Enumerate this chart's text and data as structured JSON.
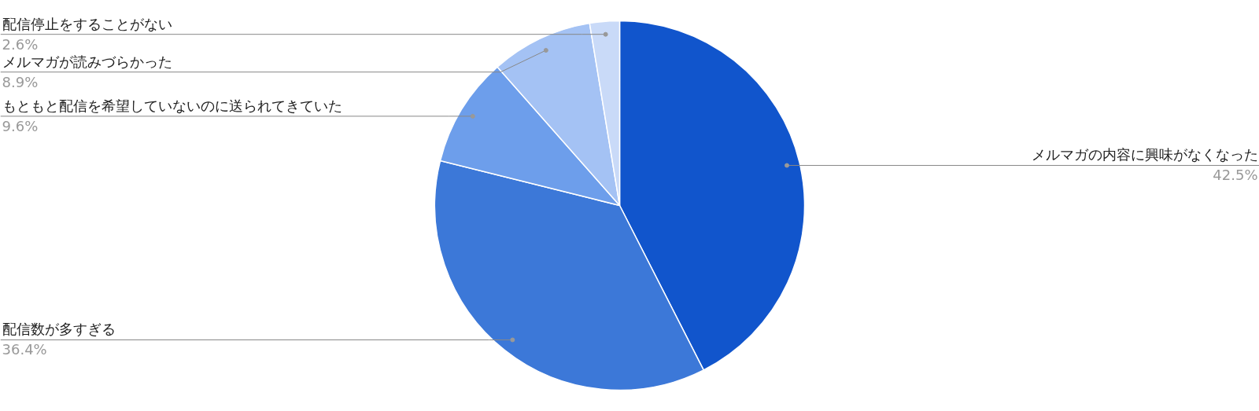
{
  "chart_data": {
    "type": "pie",
    "categories": [
      "メルマガの内容に興味がなくなった",
      "配信数が多すぎる",
      "もともと配信を希望していないのに送られてきていた",
      "メルマガが読みづらかった",
      "配信停止をすることがない"
    ],
    "values": [
      42.5,
      36.4,
      9.6,
      8.9,
      2.6
    ],
    "colors": [
      "#1155cc",
      "#3c78d8",
      "#6d9eeb",
      "#a4c2f4",
      "#c9daf8"
    ],
    "value_labels": [
      "42.5%",
      "36.4%",
      "9.6%",
      "8.9%",
      "2.6%"
    ]
  }
}
